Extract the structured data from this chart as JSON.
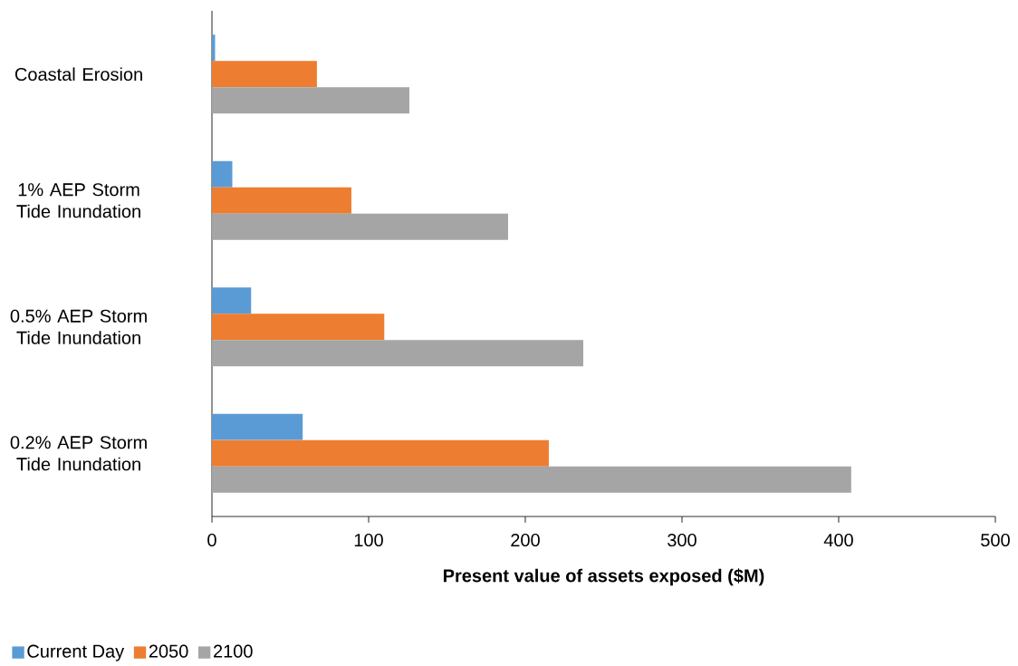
{
  "chart_data": {
    "type": "bar",
    "orientation": "horizontal",
    "xlabel": "**Present value of assets exposed ($M)**",
    "categories": [
      "Coastal Erosion",
      "1% AEP Storm Tide Inundation",
      "0.5% AEP Storm Tide Inundation",
      "0.2% AEP Storm Tide Inundation"
    ],
    "series": [
      {
        "name": "Current Day",
        "color": "#5b9bd5",
        "values": [
          2,
          13,
          25,
          58
        ]
      },
      {
        "name": "2050",
        "color": "#ed7d31",
        "values": [
          67,
          89,
          110,
          215
        ]
      },
      {
        "name": "2100",
        "color": "#a5a5a5",
        "values": [
          126,
          189,
          237,
          408
        ]
      }
    ],
    "xlim": [
      0,
      500
    ],
    "xticks": [
      0,
      100,
      200,
      300,
      400,
      500
    ],
    "grid": false,
    "legend": "bottom left"
  }
}
